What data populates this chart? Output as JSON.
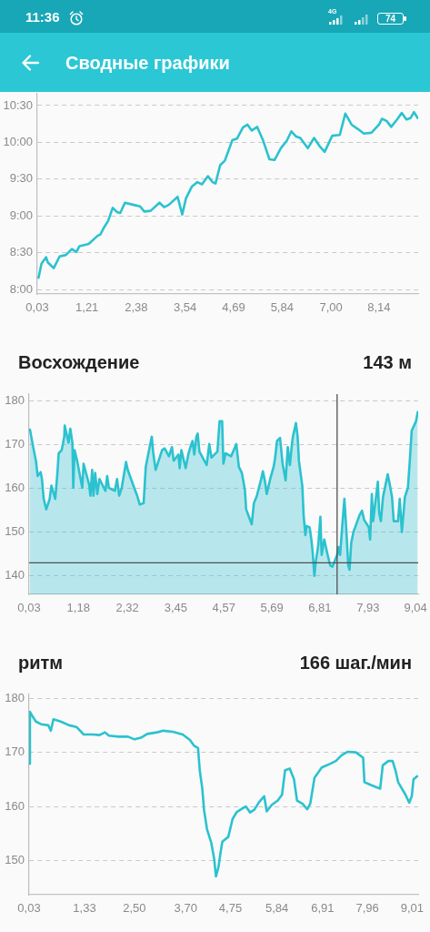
{
  "chart_data": [
    {
      "type": "line",
      "annotations": [
        "11:36",
        "4G",
        "74",
        "Сводные графики"
      ],
      "color": "#2bc2cf",
      "grid": "y",
      "x": [
        0.06,
        0.13,
        0.24,
        0.28,
        0.42,
        0.56,
        0.71,
        0.85,
        0.96,
        1.03,
        1.25,
        1.46,
        1.53,
        1.61,
        1.71,
        1.82,
        1.93,
        2.0,
        2.11,
        2.32,
        2.47,
        2.57,
        2.72,
        2.93,
        3.04,
        3.15,
        3.36,
        3.47,
        3.56,
        3.7,
        3.83,
        3.94,
        4.08,
        4.19,
        4.26,
        4.37,
        4.48,
        4.66,
        4.77,
        4.91,
        5.02,
        5.12,
        5.25,
        5.38,
        5.54,
        5.66,
        5.81,
        5.95,
        6.06,
        6.17,
        6.27,
        6.45,
        6.6,
        6.74,
        6.85,
        7.03,
        7.21,
        7.34,
        7.49,
        7.64,
        7.78,
        7.96,
        8.14,
        8.21,
        8.32,
        8.43,
        8.57,
        8.68,
        8.79,
        8.89,
        8.97,
        9.06
      ],
      "values": [
        8.16,
        8.35,
        8.44,
        8.37,
        8.29,
        8.45,
        8.47,
        8.55,
        8.51,
        8.59,
        8.62,
        8.73,
        8.75,
        8.84,
        8.93,
        9.11,
        9.05,
        9.04,
        9.18,
        9.15,
        9.13,
        9.06,
        9.07,
        9.18,
        9.12,
        9.15,
        9.26,
        9.02,
        9.24,
        9.4,
        9.46,
        9.43,
        9.54,
        9.46,
        9.44,
        9.69,
        9.75,
        10.03,
        10.05,
        10.2,
        10.24,
        10.16,
        10.21,
        10.04,
        9.77,
        9.76,
        9.92,
        10.02,
        10.15,
        10.08,
        10.06,
        9.92,
        10.06,
        9.94,
        9.87,
        10.09,
        10.1,
        10.39,
        10.24,
        10.18,
        10.12,
        10.13,
        10.24,
        10.32,
        10.29,
        10.21,
        10.31,
        10.4,
        10.31,
        10.33,
        10.41,
        10.33
      ],
      "xlim": [
        0.03,
        9.07
      ],
      "xticks": [
        {
          "value": 0.03,
          "label": "0,03"
        },
        {
          "value": 1.21,
          "label": "1,21"
        },
        {
          "value": 2.38,
          "label": "2,38"
        },
        {
          "value": 3.54,
          "label": "3,54"
        },
        {
          "value": 4.69,
          "label": "4,69"
        },
        {
          "value": 5.84,
          "label": "5,84"
        },
        {
          "value": 7,
          "label": "7,00"
        },
        {
          "value": 8.14,
          "label": "8,14"
        }
      ],
      "ylim": [
        7.94,
        10.66
      ],
      "yticks": [
        {
          "value": 8,
          "label": "8:00"
        },
        {
          "value": 8.5,
          "label": "8:30"
        },
        {
          "value": 9,
          "label": "9:00"
        },
        {
          "value": 9.5,
          "label": "9:30"
        },
        {
          "value": 10,
          "label": "10:00"
        },
        {
          "value": 10.5,
          "label": "10:30"
        }
      ]
    },
    {
      "type": "area",
      "title": "Восхождение",
      "annotations": [
        "143 м"
      ],
      "color": "#2bc2cf",
      "grid": "y",
      "x": [
        0.05,
        0.14,
        0.19,
        0.23,
        0.3,
        0.33,
        0.37,
        0.43,
        0.51,
        0.55,
        0.64,
        0.69,
        0.72,
        0.79,
        0.85,
        0.86,
        0.95,
        0.99,
        1.04,
        1.06,
        1.09,
        1.15,
        1.27,
        1.3,
        1.43,
        1.46,
        1.5,
        1.53,
        1.57,
        1.62,
        1.67,
        1.81,
        1.85,
        1.89,
        2.03,
        2.08,
        2.13,
        2.19,
        2.29,
        2.33,
        2.48,
        2.55,
        2.61,
        2.7,
        2.75,
        2.82,
        2.89,
        2.92,
        2.98,
        3.13,
        3.19,
        3.29,
        3.36,
        3.4,
        3.51,
        3.54,
        3.58,
        3.68,
        3.74,
        3.79,
        3.84,
        3.88,
        3.93,
        3.96,
        4.0,
        4.17,
        4.23,
        4.28,
        4.42,
        4.47,
        4.53,
        4.56,
        4.61,
        4.74,
        4.86,
        4.92,
        4.99,
        5.06,
        5.09,
        5.22,
        5.27,
        5.34,
        5.44,
        5.48,
        5.53,
        5.57,
        5.65,
        5.73,
        5.76,
        5.81,
        5.88,
        5.94,
        6.01,
        6.06,
        6.11,
        6.15,
        6.18,
        6.25,
        6.29,
        6.32,
        6.4,
        6.43,
        6.47,
        6.5,
        6.57,
        6.61,
        6.64,
        6.68,
        6.71,
        6.77,
        6.82,
        6.85,
        6.91,
        6.99,
        7.05,
        7.1,
        7.21,
        7.24,
        7.28,
        7.33,
        7.38,
        7.43,
        7.47,
        7.5,
        7.54,
        7.59,
        7.73,
        7.79,
        7.84,
        7.95,
        7.98,
        8.02,
        8.05,
        8.16,
        8.19,
        8.23,
        8.28,
        8.39,
        8.44,
        8.49,
        8.53,
        8.63,
        8.67,
        8.72,
        8.79,
        8.86,
        8.9,
        8.95,
        9.05,
        9.09
      ],
      "values": [
        173.4,
        168.7,
        166.3,
        162.8,
        163.7,
        162.1,
        157.6,
        155.2,
        157.6,
        160.6,
        157.6,
        163.5,
        168.0,
        168.7,
        171.8,
        174.3,
        170.4,
        173.6,
        170.4,
        160.1,
        168.7,
        166.3,
        160.1,
        165.6,
        160.8,
        158.3,
        164.2,
        158.3,
        163.5,
        158.7,
        162.1,
        159.4,
        162.8,
        160.1,
        159.4,
        162.1,
        158.3,
        160.1,
        166.0,
        164.2,
        160.1,
        158.3,
        156.3,
        156.6,
        164.9,
        168.4,
        171.8,
        168.4,
        164.2,
        168.7,
        169.1,
        167.3,
        169.4,
        166.3,
        167.7,
        164.6,
        168.7,
        164.6,
        167.7,
        169.4,
        170.8,
        167.7,
        171.8,
        172.5,
        168.4,
        165.3,
        170.1,
        167.0,
        168.4,
        175.3,
        175.3,
        165.6,
        168.0,
        167.3,
        170.1,
        164.9,
        163.5,
        159.7,
        155.2,
        151.8,
        156.6,
        158.3,
        162.1,
        163.9,
        161.5,
        158.7,
        162.1,
        164.9,
        166.6,
        170.8,
        171.5,
        165.6,
        161.8,
        169.4,
        165.3,
        169.4,
        171.8,
        174.9,
        171.8,
        166.3,
        160.4,
        153.8,
        149.3,
        151.4,
        151.1,
        148.3,
        145.5,
        140.0,
        143.1,
        146.9,
        153.5,
        144.8,
        148.3,
        144.8,
        142.4,
        142.1,
        144.8,
        146.6,
        144.8,
        151.4,
        157.6,
        149.7,
        142.4,
        141.4,
        147.6,
        150.0,
        153.8,
        154.9,
        152.8,
        151.1,
        148.3,
        158.7,
        152.5,
        161.5,
        154.5,
        152.5,
        158.0,
        163.2,
        160.8,
        158.0,
        152.5,
        152.5,
        157.6,
        150.0,
        158.0,
        160.1,
        165.6,
        173.2,
        175.3,
        177.4
      ],
      "xlim": [
        0.03,
        9.1
      ],
      "xticks": [
        {
          "value": 0.03,
          "label": "0,03"
        },
        {
          "value": 1.18,
          "label": "1,18"
        },
        {
          "value": 2.32,
          "label": "2,32"
        },
        {
          "value": 3.45,
          "label": "3,45"
        },
        {
          "value": 4.57,
          "label": "4,57"
        },
        {
          "value": 5.69,
          "label": "5,69"
        },
        {
          "value": 6.81,
          "label": "6,81"
        },
        {
          "value": 7.93,
          "label": "7,93"
        },
        {
          "value": 9.04,
          "label": "9,04"
        }
      ],
      "ylim": [
        135.8,
        181.5
      ],
      "yticks": [
        140,
        150,
        160,
        170,
        180
      ],
      "ref_lines": [
        {
          "axis": "x",
          "value": 7.21,
          "color": "#505050"
        },
        {
          "axis": "y",
          "value": 143,
          "color": "#505050"
        }
      ]
    },
    {
      "type": "line",
      "title": "ритм",
      "annotations": [
        "166 шаг./мин"
      ],
      "color": "#2bc2cf",
      "grid": "y",
      "x": [
        0.04,
        0.05,
        0.1,
        0.19,
        0.31,
        0.48,
        0.54,
        0.6,
        0.77,
        0.97,
        1.14,
        1.31,
        1.53,
        1.68,
        1.81,
        1.9,
        2.13,
        2.35,
        2.5,
        2.65,
        2.8,
        3.03,
        3.18,
        3.4,
        3.63,
        3.8,
        3.9,
        3.99,
        4.03,
        4.09,
        4.13,
        4.2,
        4.3,
        4.37,
        4.41,
        4.47,
        4.52,
        4.56,
        4.7,
        4.8,
        4.9,
        5.0,
        5.11,
        5.21,
        5.31,
        5.42,
        5.54,
        5.6,
        5.72,
        5.86,
        5.96,
        6.03,
        6.14,
        6.24,
        6.31,
        6.44,
        6.55,
        6.62,
        6.72,
        6.89,
        7.09,
        7.22,
        7.36,
        7.49,
        7.69,
        7.86,
        7.89,
        8.03,
        8.16,
        8.26,
        8.32,
        8.45,
        8.55,
        8.62,
        8.68,
        8.85,
        8.94,
        9.0,
        9.04,
        9.13
      ],
      "values": [
        167.9,
        177.5,
        176.8,
        175.7,
        175.2,
        175.0,
        174.0,
        176.1,
        175.7,
        175.0,
        174.7,
        173.3,
        173.3,
        173.2,
        173.7,
        173.1,
        172.9,
        172.9,
        172.4,
        172.7,
        173.4,
        173.7,
        174.0,
        173.8,
        173.3,
        172.3,
        171.2,
        170.8,
        166.7,
        163.3,
        159.4,
        155.8,
        153.3,
        150.2,
        147.1,
        148.8,
        151.6,
        153.5,
        154.4,
        157.7,
        159.0,
        159.5,
        160.0,
        158.9,
        159.4,
        160.8,
        161.9,
        159.1,
        160.3,
        161.1,
        162.2,
        166.7,
        167.0,
        165.0,
        161.1,
        160.5,
        159.5,
        160.5,
        165.3,
        167.2,
        167.9,
        168.4,
        169.5,
        170.1,
        170.0,
        169.0,
        164.5,
        164.0,
        163.6,
        163.3,
        167.6,
        168.4,
        168.4,
        166.6,
        164.5,
        162.2,
        160.7,
        161.9,
        165.0,
        165.6
      ],
      "xlim": [
        0.03,
        9.15
      ],
      "xticks": [
        {
          "value": 0.03,
          "label": "0,03"
        },
        {
          "value": 1.33,
          "label": "1,33"
        },
        {
          "value": 2.5,
          "label": "2,50"
        },
        {
          "value": 3.7,
          "label": "3,70"
        },
        {
          "value": 4.75,
          "label": "4,75"
        },
        {
          "value": 5.84,
          "label": "5,84"
        },
        {
          "value": 6.91,
          "label": "6,91"
        },
        {
          "value": 7.96,
          "label": "7,96"
        },
        {
          "value": 9.01,
          "label": "9,01"
        }
      ],
      "ylim": [
        143.7,
        180.7
      ],
      "yticks": [
        150,
        160,
        170,
        180
      ]
    }
  ]
}
